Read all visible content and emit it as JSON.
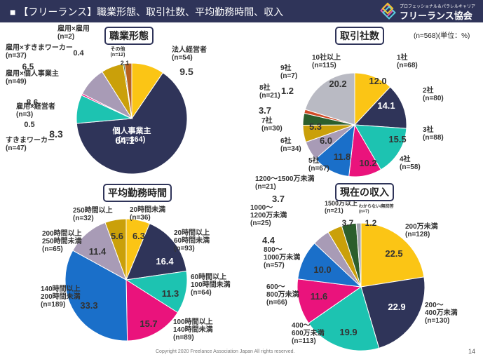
{
  "header": {
    "title": "■ 【フリーランス】職業形態、取引社数、平均勤務時間、収入",
    "logo_sub": "プロフェッショナル＆パラレルキャリア",
    "logo_main": "フリーランス協会"
  },
  "note": "(n=568)(単位：%)",
  "footer": "Copyright 2020 Freelance Association Japan  All rights reserved.",
  "page_number": "14",
  "colors": {
    "header_bg": "#2f3459",
    "yellow": "#fbc515",
    "navy": "#2f3459",
    "teal": "#1dc3b1",
    "pink": "#ea137c",
    "blue": "#1a6fc9",
    "gray": "#a3a3ad",
    "lavender": "#a89bb6",
    "gold": "#caa00a",
    "green": "#2c5e2c",
    "brown": "#b8611e",
    "lightgray": "#b9bac3",
    "red": "#d04a26"
  },
  "chart_data": [
    {
      "type": "pie",
      "title": "職業形態",
      "slices": [
        {
          "name": "法人経営者",
          "n": "(n=54)",
          "value": 9.5,
          "color": "#fbc515"
        },
        {
          "name": "個人事業主",
          "n": "(n=364)",
          "value": 64.1,
          "color": "#2f3459"
        },
        {
          "name": "すきまワーカー",
          "n": "(n=47)",
          "value": 8.3,
          "color": "#1dc3b1"
        },
        {
          "name": "雇用×経営者",
          "n": "(n=3)",
          "value": 0.5,
          "color": "#ea137c"
        },
        {
          "name": "雇用×個人事業主",
          "n": "(n=49)",
          "value": 8.6,
          "color": "#a89bb6"
        },
        {
          "name": "雇用×すきまワーカー",
          "n": "(n=37)",
          "value": 6.5,
          "color": "#caa00a"
        },
        {
          "name": "雇用×雇用",
          "n": "(n=2)",
          "value": 0.4,
          "color": "#2c5e2c"
        },
        {
          "name": "その他",
          "n": "(n=12)",
          "value": 2.1,
          "color": "#b8611e"
        }
      ]
    },
    {
      "type": "pie",
      "title": "取引社数",
      "slices": [
        {
          "name": "1社",
          "n": "(n=68)",
          "value": 12.0,
          "color": "#fbc515"
        },
        {
          "name": "2社",
          "n": "(n=80)",
          "value": 14.1,
          "color": "#2f3459"
        },
        {
          "name": "3社",
          "n": "(n=88)",
          "value": 15.5,
          "color": "#1dc3b1"
        },
        {
          "name": "4社",
          "n": "(n=58)",
          "value": 10.2,
          "color": "#ea137c"
        },
        {
          "name": "5社",
          "n": "(n=67)",
          "value": 11.8,
          "color": "#1a6fc9"
        },
        {
          "name": "6社",
          "n": "(n=34)",
          "value": 6.0,
          "color": "#a89bb6"
        },
        {
          "name": "7社",
          "n": "(n=30)",
          "value": 5.3,
          "color": "#caa00a"
        },
        {
          "name": "8社",
          "n": "(n=21)",
          "value": 3.7,
          "color": "#2c5e2c"
        },
        {
          "name": "9社",
          "n": "(n=7)",
          "value": 1.2,
          "color": "#d04a26"
        },
        {
          "name": "10社以上",
          "n": "(n=115)",
          "value": 20.2,
          "color": "#b9bac3"
        }
      ]
    },
    {
      "type": "pie",
      "title": "平均勤務時間",
      "slices": [
        {
          "name": "20時間未満",
          "n": "(n=36)",
          "value": 6.3,
          "color": "#fbc515"
        },
        {
          "name": "20時間以上 60時間未満",
          "n": "(n=93)",
          "value": 16.4,
          "color": "#2f3459"
        },
        {
          "name": "60時間以上 100時間未満",
          "n": "(n=64)",
          "value": 11.3,
          "color": "#1dc3b1"
        },
        {
          "name": "100時間以上 140時間未満",
          "n": "(n=89)",
          "value": 15.7,
          "color": "#ea137c"
        },
        {
          "name": "140時間以上 200時間未満",
          "n": "(n=189)",
          "value": 33.3,
          "color": "#1a6fc9"
        },
        {
          "name": "200時間以上 250時間未満",
          "n": "(n=65)",
          "value": 11.4,
          "color": "#a89bb6"
        },
        {
          "name": "250時間以上",
          "n": "(n=32)",
          "value": 5.6,
          "color": "#caa00a"
        }
      ]
    },
    {
      "type": "pie",
      "title": "現在の収入",
      "slices": [
        {
          "name": "200万未満",
          "n": "(n=128)",
          "value": 22.5,
          "color": "#fbc515"
        },
        {
          "name": "200～ 400万未満",
          "n": "(n=130)",
          "value": 22.9,
          "color": "#2f3459"
        },
        {
          "name": "400～ 600万未満",
          "n": "(n=113)",
          "value": 19.9,
          "color": "#1dc3b1"
        },
        {
          "name": "600～ 800万未満",
          "n": "(n=66)",
          "value": 11.6,
          "color": "#ea137c"
        },
        {
          "name": "800～ 1000万未満",
          "n": "(n=57)",
          "value": 10.0,
          "color": "#1a6fc9"
        },
        {
          "name": "1000～ 1200万未満",
          "n": "(n=25)",
          "value": 4.4,
          "color": "#a89bb6"
        },
        {
          "name": "1200～1500万未満",
          "n": "(n=21)",
          "value": 3.7,
          "color": "#caa00a"
        },
        {
          "name": "1500万以上",
          "n": "(n=21)",
          "value": 3.7,
          "color": "#2c5e2c"
        },
        {
          "name": "わからない/無回答",
          "n": "(n=7)",
          "value": 1.2,
          "color": "#a3a3ad"
        }
      ]
    }
  ]
}
